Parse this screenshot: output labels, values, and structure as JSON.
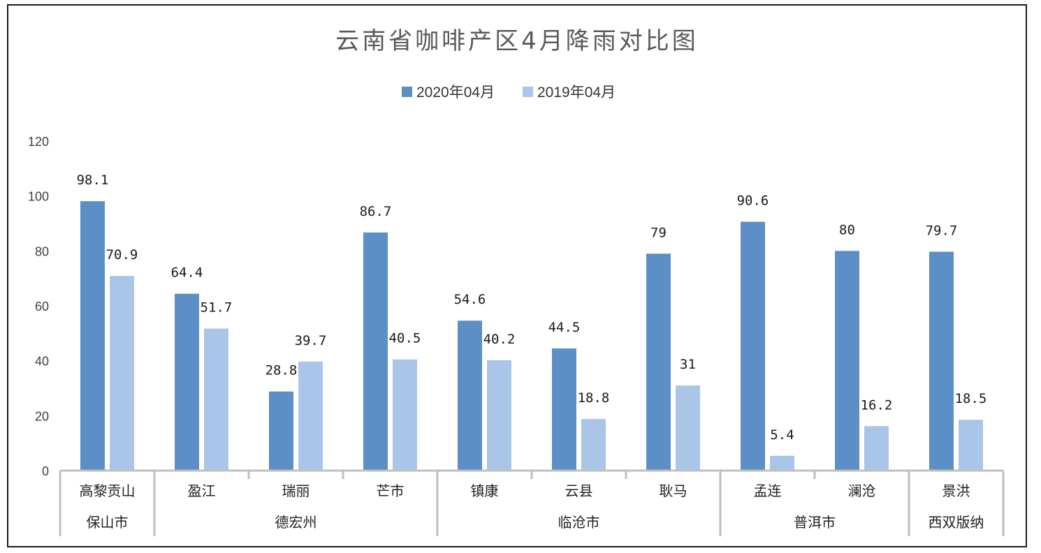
{
  "colors": {
    "series_2020": "#5b8fc5",
    "series_2019": "#a9c6e8",
    "axis": "#bfbfbf"
  },
  "chart_data": {
    "type": "bar",
    "title": "云南省咖啡产区4月降雨对比图",
    "xlabel": "",
    "ylabel": "",
    "ylim": [
      0,
      120
    ],
    "y_ticks": [
      0,
      20,
      40,
      60,
      80,
      100,
      120
    ],
    "grid": false,
    "legend_position": "top",
    "categories": [
      "高黎贡山",
      "盈江",
      "瑞丽",
      "芒市",
      "镇康",
      "云县",
      "耿马",
      "孟连",
      "澜沧",
      "景洪"
    ],
    "groups": [
      {
        "name": "保山市",
        "categories": [
          "高黎贡山"
        ]
      },
      {
        "name": "德宏州",
        "categories": [
          "盈江",
          "瑞丽",
          "芒市"
        ]
      },
      {
        "name": "临沧市",
        "categories": [
          "镇康",
          "云县",
          "耿马"
        ]
      },
      {
        "name": "普洱市",
        "categories": [
          "孟连",
          "澜沧"
        ]
      },
      {
        "name": "西双版纳",
        "categories": [
          "景洪"
        ]
      }
    ],
    "series": [
      {
        "name": "2020年04月",
        "values": [
          98.1,
          64.4,
          28.8,
          86.7,
          54.6,
          44.5,
          79,
          90.6,
          80,
          79.7
        ]
      },
      {
        "name": "2019年04月",
        "values": [
          70.9,
          51.7,
          39.7,
          40.5,
          40.2,
          18.8,
          31,
          5.4,
          16.2,
          18.5
        ]
      }
    ]
  }
}
